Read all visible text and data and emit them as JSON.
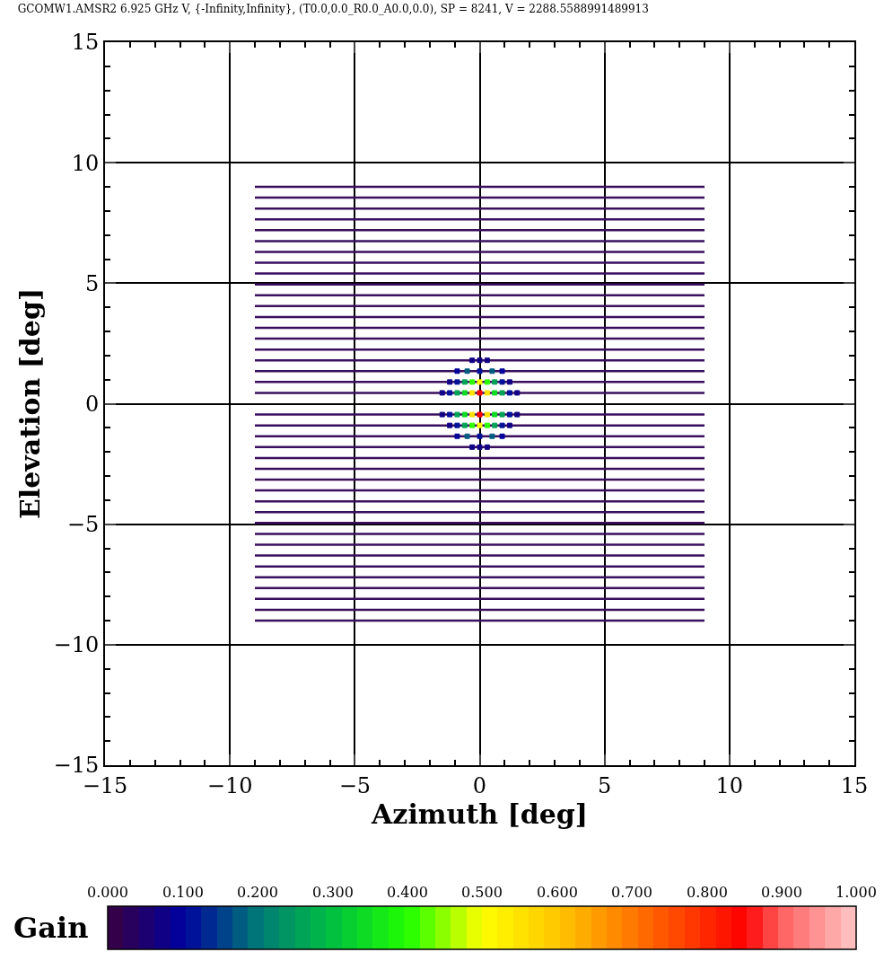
{
  "chart_data": {
    "type": "line",
    "title": "GCOMW1.AMSR2 6.925 GHz V, {-Infinity,Infinity}, (T0.0,0.0_R0.0_A0.0,0.0), SP = 8241, V = 2288.5588991489913",
    "xlabel": "Azimuth [deg]",
    "ylabel": "Elevation [deg]",
    "clabel": "Gain",
    "xlim": [
      -15,
      15
    ],
    "ylim": [
      -15,
      15
    ],
    "xticks": [
      -15,
      -10,
      -5,
      0,
      5,
      10,
      15
    ],
    "yticks": [
      -15,
      -10,
      -5,
      0,
      5,
      10,
      15
    ],
    "grid": true,
    "legend": false,
    "marker": "none",
    "line_style": "solid",
    "clim": [
      0,
      1
    ],
    "cticks": [
      {
        "value": 0,
        "label": "0.000"
      },
      {
        "value": 0.1,
        "label": "0.100"
      },
      {
        "value": 0.2,
        "label": "0.200"
      },
      {
        "value": 0.3,
        "label": "0.300"
      },
      {
        "value": 0.4,
        "label": "0.400"
      },
      {
        "value": 0.5,
        "label": "0.500"
      },
      {
        "value": 0.6,
        "label": "0.600"
      },
      {
        "value": 0.7,
        "label": "0.700"
      },
      {
        "value": 0.8,
        "label": "0.800"
      },
      {
        "value": 0.9,
        "label": "0.900"
      },
      {
        "value": 1,
        "label": "1.000"
      }
    ],
    "series": [
      {
        "color": "#3a0f5e",
        "x": [
          -9,
          9
        ],
        "values": [
          9,
          9
        ]
      },
      {
        "color": "#3a0f5e",
        "x": [
          -9,
          9
        ],
        "values": [
          8.55,
          8.55
        ]
      },
      {
        "color": "#3a0f5e",
        "x": [
          -9,
          9
        ],
        "values": [
          8.1,
          8.1
        ]
      },
      {
        "color": "#3a0f5e",
        "x": [
          -9,
          9
        ],
        "values": [
          7.65,
          7.65
        ]
      },
      {
        "color": "#3a0f5e",
        "x": [
          -9,
          9
        ],
        "values": [
          7.2,
          7.2
        ]
      },
      {
        "color": "#3a0f5e",
        "x": [
          -9,
          9
        ],
        "values": [
          6.75,
          6.75
        ]
      },
      {
        "color": "#3a0f5e",
        "x": [
          -9,
          9
        ],
        "values": [
          6.3,
          6.3
        ]
      },
      {
        "color": "#3a0f5e",
        "x": [
          -9,
          9
        ],
        "values": [
          5.85,
          5.85
        ]
      },
      {
        "color": "#3a0f5e",
        "x": [
          -9,
          9
        ],
        "values": [
          5.4,
          5.4
        ]
      },
      {
        "color": "#3a0f5e",
        "x": [
          -9,
          9
        ],
        "values": [
          4.95,
          4.95
        ]
      },
      {
        "color": "#3a0f5e",
        "x": [
          -9,
          9
        ],
        "values": [
          4.5,
          4.5
        ]
      },
      {
        "color": "#3a0f5e",
        "x": [
          -9,
          9
        ],
        "values": [
          4.05,
          4.05
        ]
      },
      {
        "color": "#3a0f5e",
        "x": [
          -9,
          9
        ],
        "values": [
          3.6,
          3.6
        ]
      },
      {
        "color": "#3a0f5e",
        "x": [
          -9,
          9
        ],
        "values": [
          3.15,
          3.15
        ]
      },
      {
        "color": "#3a0f5e",
        "x": [
          -9,
          9
        ],
        "values": [
          2.7,
          2.7
        ]
      },
      {
        "color": "#3a0f5e",
        "x": [
          -9,
          9
        ],
        "values": [
          2.25,
          2.25
        ]
      },
      {
        "color": "#3a0f5e",
        "x": [
          -9,
          9
        ],
        "values": [
          1.8,
          1.8
        ]
      },
      {
        "color": "#3a0f5e",
        "x": [
          -9,
          9
        ],
        "values": [
          1.35,
          1.35
        ]
      },
      {
        "color": "#3a0f5e",
        "x": [
          -9,
          9
        ],
        "values": [
          0.9,
          0.9
        ]
      },
      {
        "color": "#3a0f5e",
        "x": [
          -9,
          9
        ],
        "values": [
          0.45,
          0.45
        ]
      },
      {
        "color": "#3a0f5e",
        "x": [
          -9,
          9
        ],
        "values": [
          -0.45,
          -0.45
        ]
      },
      {
        "color": "#3a0f5e",
        "x": [
          -9,
          9
        ],
        "values": [
          -0.9,
          -0.9
        ]
      },
      {
        "color": "#3a0f5e",
        "x": [
          -9,
          9
        ],
        "values": [
          -1.35,
          -1.35
        ]
      },
      {
        "color": "#3a0f5e",
        "x": [
          -9,
          9
        ],
        "values": [
          -1.8,
          -1.8
        ]
      },
      {
        "color": "#3a0f5e",
        "x": [
          -9,
          9
        ],
        "values": [
          -2.25,
          -2.25
        ]
      },
      {
        "color": "#3a0f5e",
        "x": [
          -9,
          9
        ],
        "values": [
          -2.7,
          -2.7
        ]
      },
      {
        "color": "#3a0f5e",
        "x": [
          -9,
          9
        ],
        "values": [
          -3.15,
          -3.15
        ]
      },
      {
        "color": "#3a0f5e",
        "x": [
          -9,
          9
        ],
        "values": [
          -3.6,
          -3.6
        ]
      },
      {
        "color": "#3a0f5e",
        "x": [
          -9,
          9
        ],
        "values": [
          -4.05,
          -4.05
        ]
      },
      {
        "color": "#3a0f5e",
        "x": [
          -9,
          9
        ],
        "values": [
          -4.5,
          -4.5
        ]
      },
      {
        "color": "#3a0f5e",
        "x": [
          -9,
          9
        ],
        "values": [
          -4.95,
          -4.95
        ]
      },
      {
        "color": "#3a0f5e",
        "x": [
          -9,
          9
        ],
        "values": [
          -5.4,
          -5.4
        ]
      },
      {
        "color": "#3a0f5e",
        "x": [
          -9,
          9
        ],
        "values": [
          -5.85,
          -5.85
        ]
      },
      {
        "color": "#3a0f5e",
        "x": [
          -9,
          9
        ],
        "values": [
          -6.3,
          -6.3
        ]
      },
      {
        "color": "#3a0f5e",
        "x": [
          -9,
          9
        ],
        "values": [
          -6.75,
          -6.75
        ]
      },
      {
        "color": "#3a0f5e",
        "x": [
          -9,
          9
        ],
        "values": [
          -7.2,
          -7.2
        ]
      },
      {
        "color": "#3a0f5e",
        "x": [
          -9,
          9
        ],
        "values": [
          -7.65,
          -7.65
        ]
      },
      {
        "color": "#3a0f5e",
        "x": [
          -9,
          9
        ],
        "values": [
          -8.1,
          -8.1
        ]
      },
      {
        "color": "#3a0f5e",
        "x": [
          -9,
          9
        ],
        "values": [
          -8.55,
          -8.55
        ]
      },
      {
        "color": "#3a0f5e",
        "x": [
          -9,
          9
        ],
        "values": [
          -9,
          -9
        ]
      },
      {
        "type": "scatter",
        "marker": "square",
        "colors": [
          "#100086",
          "#00129a",
          "#00a356",
          "#0edc24",
          "#ffe200",
          "#ff0500",
          "#ffe200",
          "#0edc24",
          "#00a356",
          "#00129a",
          "#100086",
          "#100086",
          "#00129a",
          "#00a356",
          "#0edc24",
          "#ffe200",
          "#ff0500",
          "#ffe200",
          "#0edc24",
          "#00a356",
          "#00129a",
          "#100086",
          "#100086",
          "#00129a",
          "#00a356",
          "#2eff00",
          "#fff900",
          "#2eff00",
          "#00a356",
          "#00129a",
          "#100086",
          "#100086",
          "#00129a",
          "#00a356",
          "#2eff00",
          "#fff900",
          "#2eff00",
          "#00a356",
          "#00129a",
          "#100086",
          "#04009a",
          "#005c81",
          "#00129a",
          "#005c81",
          "#04009a",
          "#04009a",
          "#005c81",
          "#00129a",
          "#005c81",
          "#04009a",
          "#100086",
          "#100086",
          "#100086",
          "#100086",
          "#100086",
          "#100086"
        ],
        "x": [
          -1.5,
          -1.2,
          -0.9,
          -0.6,
          -0.3,
          0,
          0.3,
          0.6,
          0.9,
          1.2,
          1.5,
          -1.5,
          -1.2,
          -0.9,
          -0.6,
          -0.3,
          0,
          0.3,
          0.6,
          0.9,
          1.2,
          1.5,
          -1.2,
          -0.9,
          -0.6,
          -0.3,
          0,
          0.3,
          0.6,
          0.9,
          1.2,
          -1.2,
          -0.9,
          -0.6,
          -0.3,
          0,
          0.3,
          0.6,
          0.9,
          1.2,
          -0.9,
          -0.5,
          0,
          0.5,
          0.9,
          -0.9,
          -0.5,
          0,
          0.5,
          0.9,
          -0.3,
          0,
          0.3,
          -0.3,
          0,
          0.3
        ],
        "values": [
          0.45,
          0.45,
          0.45,
          0.45,
          0.45,
          0.45,
          0.45,
          0.45,
          0.45,
          0.45,
          0.45,
          -0.45,
          -0.45,
          -0.45,
          -0.45,
          -0.45,
          -0.45,
          -0.45,
          -0.45,
          -0.45,
          -0.45,
          -0.45,
          0.9,
          0.9,
          0.9,
          0.9,
          0.9,
          0.9,
          0.9,
          0.9,
          0.9,
          -0.9,
          -0.9,
          -0.9,
          -0.9,
          -0.9,
          -0.9,
          -0.9,
          -0.9,
          -0.9,
          1.35,
          1.35,
          1.35,
          1.35,
          1.35,
          -1.35,
          -1.35,
          -1.35,
          -1.35,
          -1.35,
          1.8,
          1.8,
          1.8,
          -1.8,
          -1.8,
          -1.8
        ],
        "cvalues": [
          0.08,
          0.12,
          0.25,
          0.35,
          0.55,
          0.85,
          0.55,
          0.35,
          0.25,
          0.12,
          0.08,
          0.08,
          0.12,
          0.25,
          0.35,
          0.55,
          0.85,
          0.55,
          0.35,
          0.25,
          0.12,
          0.08,
          0.08,
          0.12,
          0.25,
          0.4,
          0.5,
          0.4,
          0.25,
          0.12,
          0.08,
          0.08,
          0.12,
          0.25,
          0.4,
          0.5,
          0.4,
          0.25,
          0.12,
          0.08,
          0.1,
          0.18,
          0.12,
          0.18,
          0.1,
          0.1,
          0.18,
          0.12,
          0.18,
          0.1,
          0.08,
          0.08,
          0.08,
          0.08,
          0.08,
          0.08
        ]
      }
    ]
  }
}
